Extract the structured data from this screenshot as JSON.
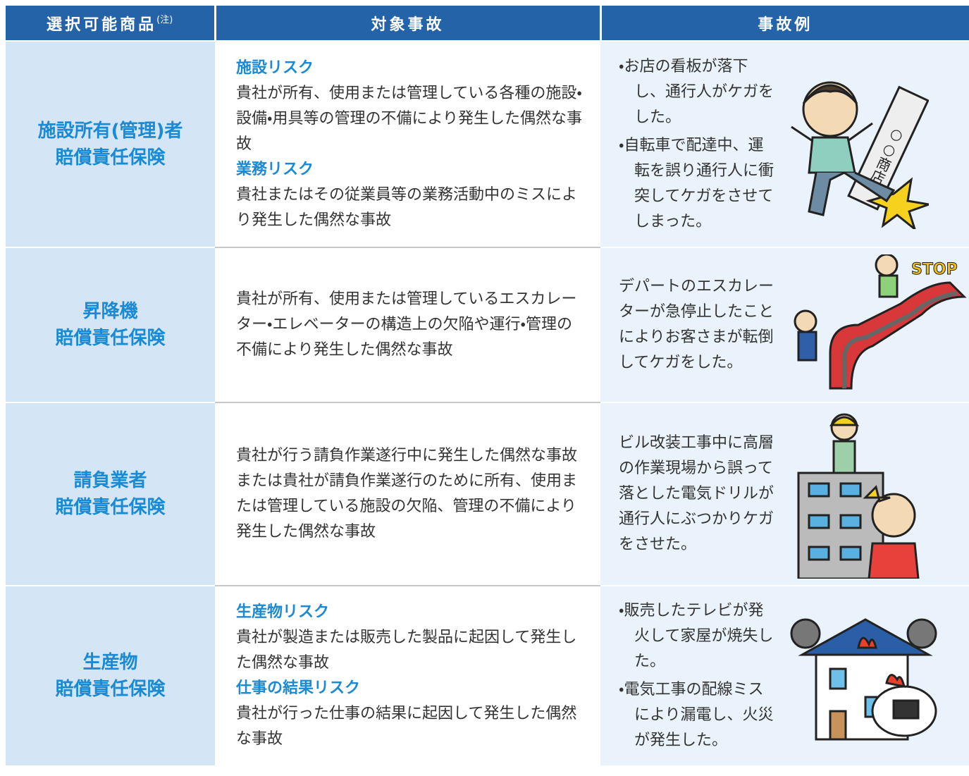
{
  "table": {
    "header": [
      "選択可能商品",
      "対象事故",
      "事故例"
    ],
    "header_note": "(注)",
    "rows": [
      {
        "product": [
          "施設所有(管理)者",
          "賠償責任保険"
        ],
        "accident": [
          {
            "heading": "施設リスク",
            "text": "貴社が所有、使用または管理している各種の施設・設備・用具等の管理の不備により発生した偶然な事故"
          },
          {
            "heading": "業務リスク",
            "text": "貴社またはその従業員等の業務活動中のミスにより発生した偶然な事故"
          }
        ],
        "examples": [
          "・お店の看板が落下し、通行人がケガをした。",
          "・自転車で配達中、運転を誤り通行人に衝突してケガをさせてしまった。"
        ],
        "illustration_text": "○○商店"
      },
      {
        "product": [
          "昇降機",
          "賠償責任保険"
        ],
        "accident": [
          {
            "text": "貴社が所有、使用または管理しているエスカレーター・エレベーターの構造上の欠陥や運行・管理の不備により発生した偶然な事故"
          }
        ],
        "examples": [
          "デパートのエスカレーターが急停止したことによりお客さまが転倒してケガをした。"
        ],
        "illustration_text": "STOP"
      },
      {
        "product": [
          "請負業者",
          "賠償責任保険"
        ],
        "accident": [
          {
            "text": "貴社が行う請負作業遂行中に発生した偶然な事故または貴社が請負作業遂行のために所有、使用または管理している施設の欠陥、管理の不備により発生した偶然な事故"
          }
        ],
        "examples": [
          "ビル改装工事中に高層の作業現場から誤って落とした電気ドリルが通行人にぶつかりケガをさせた。"
        ]
      },
      {
        "product": [
          "生産物",
          "賠償責任保険"
        ],
        "accident": [
          {
            "heading": "生産物リスク",
            "text": "貴社が製造または販売した製品に起因して発生した偶然な事故"
          },
          {
            "heading": "仕事の結果リスク",
            "text": "貴社が行った仕事の結果に起因して発生した偶然な事故"
          }
        ],
        "examples": [
          "・販売したテレビが発火して家屋が焼失した。",
          "・電気工事の配線ミスにより漏電し、火災が発生した。"
        ]
      }
    ]
  }
}
